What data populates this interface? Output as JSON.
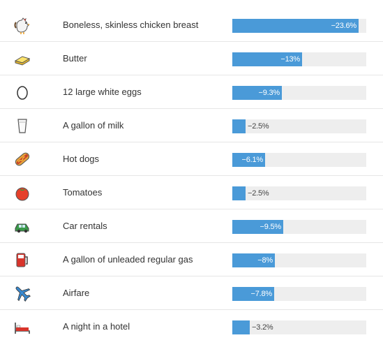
{
  "chart_data": {
    "type": "bar",
    "orientation": "horizontal",
    "categories": [
      "Boneless, skinless chicken breast",
      "Butter",
      "12 large white eggs",
      "A gallon of milk",
      "Hot dogs",
      "Tomatoes",
      "Car rentals",
      "A gallon of unleaded regular gas",
      "Airfare",
      "A night in a hotel"
    ],
    "values": [
      -23.6,
      -13,
      -9.3,
      -2.5,
      -6.1,
      -2.5,
      -9.5,
      -8,
      -7.8,
      -3.2
    ],
    "value_labels": [
      "−23.6%",
      "−13%",
      "−9.3%",
      "−2.5%",
      "−6.1%",
      "−2.5%",
      "−9.5%",
      "−8%",
      "−7.8%",
      "−3.2%"
    ],
    "icons": [
      "rooster-icon",
      "butter-icon",
      "egg-icon",
      "milk-glass-icon",
      "hot-dog-icon",
      "tomato-icon",
      "car-icon",
      "fuel-pump-icon",
      "airplane-icon",
      "hotel-bed-icon"
    ],
    "xlim": [
      0,
      25
    ],
    "bar_color": "#4a9ad8",
    "track_color": "#eeeeee",
    "title": "",
    "xlabel": "",
    "ylabel": "",
    "grid": false,
    "legend": "none"
  }
}
